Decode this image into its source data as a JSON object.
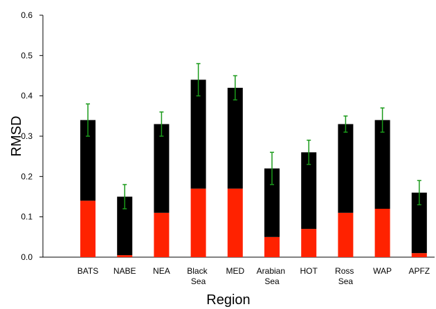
{
  "chart_data": {
    "type": "stacked-bar",
    "xlabel": "Region",
    "ylabel": "RMSD",
    "categories": [
      "BATS",
      "NABE",
      "NEA",
      "Black Sea",
      "MED",
      "Arabian Sea",
      "HOT",
      "Ross Sea",
      "WAP",
      "APFZ"
    ],
    "series": [
      {
        "color": "#ff2200",
        "values": [
          0.14,
          0.005,
          0.11,
          0.17,
          0.17,
          0.05,
          0.07,
          0.11,
          0.12,
          0.01
        ]
      },
      {
        "color": "#000000",
        "values": [
          0.2,
          0.145,
          0.22,
          0.27,
          0.25,
          0.17,
          0.19,
          0.22,
          0.22,
          0.15
        ],
        "errors": [
          0.04,
          0.03,
          0.03,
          0.04,
          0.03,
          0.04,
          0.03,
          0.02,
          0.03,
          0.03
        ],
        "error_color": "#1a9a1a"
      }
    ],
    "ylim": [
      0,
      0.6
    ],
    "yticks": [
      {
        "value": 0,
        "label": "0.0"
      },
      0.1,
      0.2,
      0.3,
      0.4,
      0.5,
      0.6
    ],
    "grid": false
  }
}
